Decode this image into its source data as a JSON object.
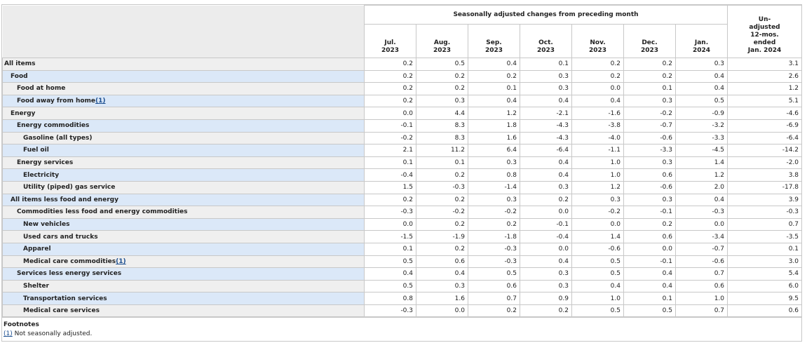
{
  "table": {
    "header": {
      "group": "Seasonally adjusted changes from preceding month",
      "months": [
        [
          "Jul.",
          "2023"
        ],
        [
          "Aug.",
          "2023"
        ],
        [
          "Sep.",
          "2023"
        ],
        [
          "Oct.",
          "2023"
        ],
        [
          "Nov.",
          "2023"
        ],
        [
          "Dec.",
          "2023"
        ],
        [
          "Jan.",
          "2024"
        ]
      ],
      "last": [
        "Un-",
        "adjusted",
        "12-mos.",
        "ended",
        "Jan. 2024"
      ]
    },
    "rows": [
      {
        "label": "All items",
        "values": [
          "0.2",
          "0.5",
          "0.4",
          "0.1",
          "0.2",
          "0.2",
          "0.3",
          "3.1"
        ]
      },
      {
        "label": "Food",
        "values": [
          "0.2",
          "0.2",
          "0.2",
          "0.3",
          "0.2",
          "0.2",
          "0.4",
          "2.6"
        ]
      },
      {
        "label": "Food at home",
        "values": [
          "0.2",
          "0.2",
          "0.1",
          "0.3",
          "0.0",
          "0.1",
          "0.4",
          "1.2"
        ]
      },
      {
        "label": "Food away from home",
        "note": "(1)",
        "values": [
          "0.2",
          "0.3",
          "0.4",
          "0.4",
          "0.4",
          "0.3",
          "0.5",
          "5.1"
        ]
      },
      {
        "label": "Energy",
        "values": [
          "0.0",
          "4.4",
          "1.2",
          "-2.1",
          "-1.6",
          "-0.2",
          "-0.9",
          "-4.6"
        ]
      },
      {
        "label": "Energy commodities",
        "values": [
          "-0.1",
          "8.3",
          "1.8",
          "-4.3",
          "-3.8",
          "-0.7",
          "-3.2",
          "-6.9"
        ]
      },
      {
        "label": "Gasoline (all types)",
        "values": [
          "-0.2",
          "8.3",
          "1.6",
          "-4.3",
          "-4.0",
          "-0.6",
          "-3.3",
          "-6.4"
        ]
      },
      {
        "label": "Fuel oil",
        "values": [
          "2.1",
          "11.2",
          "6.4",
          "-6.4",
          "-1.1",
          "-3.3",
          "-4.5",
          "-14.2"
        ]
      },
      {
        "label": "Energy services",
        "values": [
          "0.1",
          "0.1",
          "0.3",
          "0.4",
          "1.0",
          "0.3",
          "1.4",
          "-2.0"
        ]
      },
      {
        "label": "Electricity",
        "values": [
          "-0.4",
          "0.2",
          "0.8",
          "0.4",
          "1.0",
          "0.6",
          "1.2",
          "3.8"
        ]
      },
      {
        "label": "Utility (piped) gas service",
        "values": [
          "1.5",
          "-0.3",
          "-1.4",
          "0.3",
          "1.2",
          "-0.6",
          "2.0",
          "-17.8"
        ]
      },
      {
        "label": "All items less food and energy",
        "values": [
          "0.2",
          "0.2",
          "0.3",
          "0.2",
          "0.3",
          "0.3",
          "0.4",
          "3.9"
        ]
      },
      {
        "label": "Commodities less food and energy commodities",
        "values": [
          "-0.3",
          "-0.2",
          "-0.2",
          "0.0",
          "-0.2",
          "-0.1",
          "-0.3",
          "-0.3"
        ]
      },
      {
        "label": "New vehicles",
        "values": [
          "0.0",
          "0.2",
          "0.2",
          "-0.1",
          "0.0",
          "0.2",
          "0.0",
          "0.7"
        ]
      },
      {
        "label": "Used cars and trucks",
        "values": [
          "-1.5",
          "-1.9",
          "-1.8",
          "-0.4",
          "1.4",
          "0.6",
          "-3.4",
          "-3.5"
        ]
      },
      {
        "label": "Apparel",
        "values": [
          "0.1",
          "0.2",
          "-0.3",
          "0.0",
          "-0.6",
          "0.0",
          "-0.7",
          "0.1"
        ]
      },
      {
        "label": "Medical care commodities",
        "note": "(1)",
        "values": [
          "0.5",
          "0.6",
          "-0.3",
          "0.4",
          "0.5",
          "-0.1",
          "-0.6",
          "3.0"
        ]
      },
      {
        "label": "Services less energy services",
        "values": [
          "0.4",
          "0.4",
          "0.5",
          "0.3",
          "0.5",
          "0.4",
          "0.7",
          "5.4"
        ]
      },
      {
        "label": "Shelter",
        "values": [
          "0.5",
          "0.3",
          "0.6",
          "0.3",
          "0.4",
          "0.4",
          "0.6",
          "6.0"
        ]
      },
      {
        "label": "Transportation services",
        "values": [
          "0.8",
          "1.6",
          "0.7",
          "0.9",
          "1.0",
          "0.1",
          "1.0",
          "9.5"
        ]
      },
      {
        "label": "Medical care services",
        "values": [
          "-0.3",
          "0.0",
          "0.2",
          "0.2",
          "0.5",
          "0.5",
          "0.7",
          "0.6"
        ]
      }
    ]
  },
  "footnotes": {
    "title": "Footnotes",
    "ref": "(1)",
    "text": " Not seasonally adjusted."
  }
}
